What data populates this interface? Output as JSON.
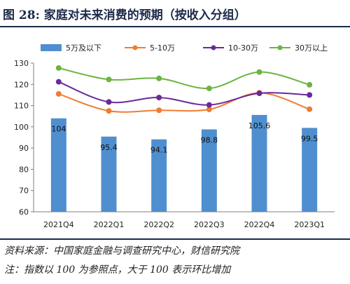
{
  "figure": {
    "title": "图 28:  家庭对未来消费的预期（按收入分组）",
    "source": "资料来源：中国家庭金融与调查研究中心，财信研究院",
    "note": "注：指数以 100 为参照点，大于 100 表示环比增加"
  },
  "colors": {
    "bar": "#4f8fd0",
    "line_5_10": "#f07c30",
    "line_10_30": "#6a2a9a",
    "line_30plus": "#6cb442",
    "frame": "#1c2a4a"
  },
  "chart_data": {
    "type": "bar",
    "categories": [
      "2021Q4",
      "2022Q1",
      "2022Q2",
      "2022Q3",
      "2022Q4",
      "2023Q1"
    ],
    "ylim": [
      60,
      130
    ],
    "yticks": [
      60,
      70,
      80,
      90,
      100,
      110,
      120,
      130
    ],
    "grid": false,
    "legend_position": "top",
    "series": [
      {
        "name": "5万及以下",
        "type": "bar",
        "values": [
          104,
          95.4,
          94.1,
          98.8,
          105.6,
          99.5
        ],
        "labels": [
          "104",
          "95.4",
          "94.1",
          "98.8",
          "105.6",
          "99.5"
        ]
      },
      {
        "name": "5-10万",
        "type": "line",
        "values": [
          115.5,
          107.5,
          107.8,
          108.2,
          116,
          108.3
        ]
      },
      {
        "name": "10-30万",
        "type": "line",
        "values": [
          121.2,
          111.7,
          113.8,
          110.3,
          115.8,
          115
        ]
      },
      {
        "name": "30万以上",
        "type": "line",
        "values": [
          127.7,
          122.3,
          122.8,
          118.1,
          125.8,
          119.8
        ]
      }
    ]
  }
}
